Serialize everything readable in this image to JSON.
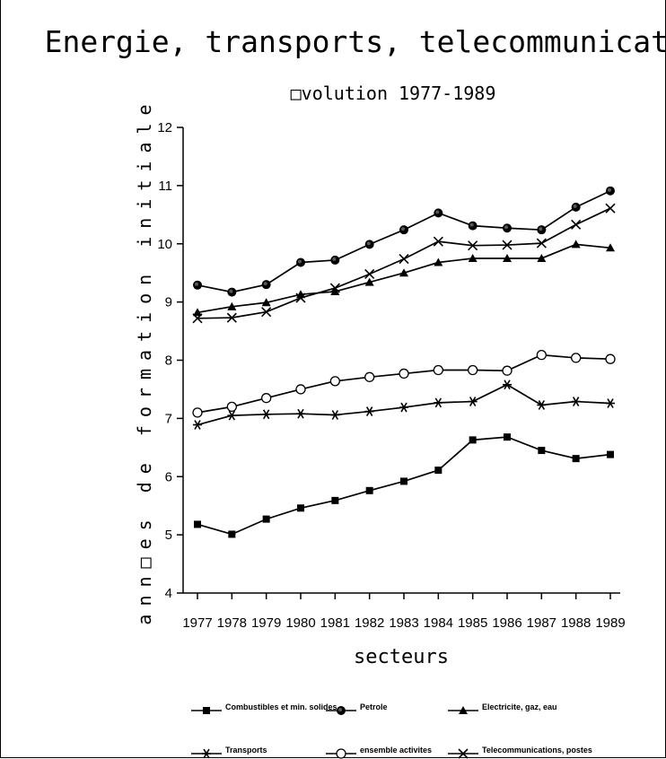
{
  "chart_data": {
    "type": "line",
    "title": "Energie, transports, telecommunications",
    "subtitle": "□volution 1977-1989",
    "xlabel": "secteurs",
    "ylabel": "ann□es de formation initiale",
    "ylim": [
      4,
      12
    ],
    "yticks": [
      "4",
      "5",
      "6",
      "7",
      "8",
      "9",
      "10",
      "11",
      "12"
    ],
    "categories": [
      "1977",
      "1978",
      "1979",
      "1980",
      "1981",
      "1982",
      "1983",
      "1984",
      "1985",
      "1986",
      "1987",
      "1988",
      "1989"
    ],
    "grid": false,
    "legend_position": "bottom",
    "series": [
      {
        "name": "Combustibles et min. solides",
        "marker": "filled-square",
        "values": [
          5.18,
          5.01,
          5.27,
          5.46,
          5.59,
          5.76,
          5.92,
          6.11,
          6.63,
          6.68,
          6.45,
          6.31,
          6.38
        ]
      },
      {
        "name": "Petrole",
        "marker": "filled-circle",
        "values": [
          9.29,
          9.17,
          9.3,
          9.68,
          9.72,
          9.99,
          10.24,
          10.53,
          10.31,
          10.27,
          10.24,
          10.63,
          10.91
        ]
      },
      {
        "name": "Electricite, gaz, eau",
        "marker": "filled-triangle",
        "values": [
          8.82,
          8.92,
          8.99,
          9.13,
          9.18,
          9.34,
          9.5,
          9.68,
          9.75,
          9.75,
          9.75,
          9.99,
          9.93
        ]
      },
      {
        "name": "Transports",
        "marker": "asterisk",
        "values": [
          6.89,
          7.05,
          7.07,
          7.08,
          7.06,
          7.12,
          7.19,
          7.27,
          7.29,
          7.58,
          7.23,
          7.29,
          7.26
        ]
      },
      {
        "name": "ensemble activites",
        "marker": "open-circle",
        "values": [
          7.1,
          7.2,
          7.35,
          7.5,
          7.64,
          7.71,
          7.77,
          7.83,
          7.83,
          7.82,
          8.09,
          8.04,
          8.02
        ]
      },
      {
        "name": "Telecommunications, postes",
        "marker": "x-cross",
        "values": [
          8.72,
          8.73,
          8.83,
          9.07,
          9.24,
          9.48,
          9.74,
          10.04,
          9.97,
          9.98,
          10.01,
          10.33,
          10.61
        ]
      }
    ]
  }
}
